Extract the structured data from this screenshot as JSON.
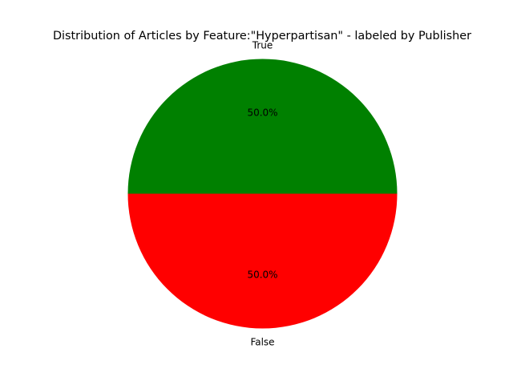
{
  "chart_data": {
    "type": "pie",
    "title": "Distribution of Articles by Feature:\"Hyperpartisan\" - labeled by Publisher",
    "slices": [
      {
        "label": "True",
        "value": 50.0,
        "pct_label": "50.0%",
        "color": "#008000"
      },
      {
        "label": "False",
        "value": 50.0,
        "pct_label": "50.0%",
        "color": "#ff0000"
      }
    ],
    "start_angle_deg": 0,
    "direction": "counterclockwise",
    "legend": "none"
  }
}
